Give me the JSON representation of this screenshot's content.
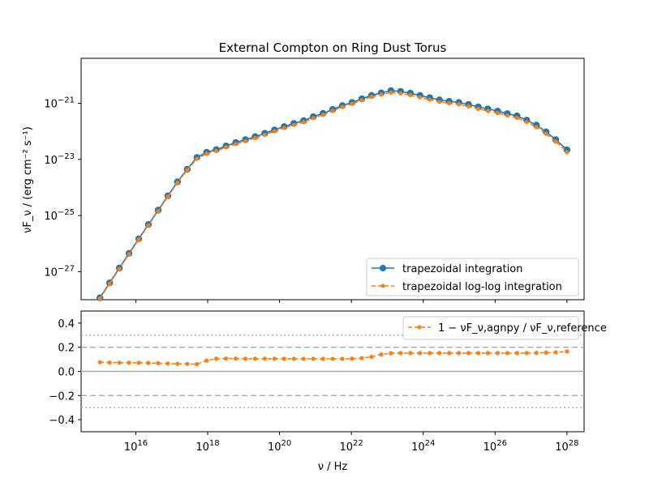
{
  "chart_data": [
    {
      "type": "line",
      "title": "External Compton on Ring Dust Torus",
      "xlabel": "",
      "ylabel": "νF_ν / (erg cm⁻² s⁻¹)",
      "x_scale": "log",
      "y_scale": "log",
      "xlim": [
        300000000000000.0,
        3e+28
      ],
      "ylim": [
        1e-28,
        4e-20
      ],
      "y_ticks": [
        {
          "mant": "10",
          "exp": "−21",
          "v": -21
        },
        {
          "mant": "10",
          "exp": "−23",
          "v": -23
        },
        {
          "mant": "10",
          "exp": "−25",
          "v": -25
        },
        {
          "mant": "10",
          "exp": "−27",
          "v": -27
        }
      ],
      "x_log10": [
        15.0,
        15.27,
        15.54,
        15.81,
        16.08,
        16.35,
        16.62,
        16.89,
        17.16,
        17.43,
        17.7,
        17.97,
        18.24,
        18.51,
        18.78,
        19.05,
        19.32,
        19.59,
        19.86,
        20.13,
        20.4,
        20.67,
        20.94,
        21.21,
        21.48,
        21.75,
        22.02,
        22.29,
        22.56,
        22.83,
        23.1,
        23.37,
        23.64,
        23.91,
        24.18,
        24.45,
        24.72,
        24.99,
        25.26,
        25.53,
        25.8,
        26.07,
        26.34,
        26.61,
        26.88,
        27.15,
        27.42,
        27.69,
        28.0
      ],
      "series": [
        {
          "name": "trapezoidal integration",
          "color": "#1f77b4",
          "marker": "circle",
          "line": "solid",
          "y_log10": [
            -27.93,
            -27.4,
            -26.87,
            -26.35,
            -25.83,
            -25.32,
            -24.81,
            -24.3,
            -23.8,
            -23.35,
            -22.93,
            -22.75,
            -22.65,
            -22.52,
            -22.4,
            -22.3,
            -22.19,
            -22.07,
            -21.95,
            -21.83,
            -21.72,
            -21.62,
            -21.48,
            -21.36,
            -21.22,
            -21.08,
            -20.97,
            -20.84,
            -20.72,
            -20.63,
            -20.55,
            -20.58,
            -20.64,
            -20.72,
            -20.8,
            -20.88,
            -20.93,
            -20.97,
            -21.04,
            -21.13,
            -21.2,
            -21.28,
            -21.37,
            -21.45,
            -21.6,
            -21.78,
            -22.02,
            -22.3,
            -22.66
          ]
        },
        {
          "name": "trapezoidal log-log integration",
          "color": "#ff7f0e",
          "marker": "dot",
          "line": "dashed",
          "y_log10": [
            -27.96,
            -27.43,
            -26.9,
            -26.38,
            -25.86,
            -25.35,
            -24.84,
            -24.33,
            -23.83,
            -23.38,
            -22.98,
            -22.8,
            -22.7,
            -22.57,
            -22.45,
            -22.35,
            -22.24,
            -22.12,
            -22.0,
            -21.88,
            -21.77,
            -21.67,
            -21.53,
            -21.41,
            -21.27,
            -21.13,
            -21.02,
            -20.89,
            -20.77,
            -20.69,
            -20.62,
            -20.65,
            -20.71,
            -20.79,
            -20.87,
            -20.95,
            -21.0,
            -21.04,
            -21.11,
            -21.2,
            -21.27,
            -21.35,
            -21.44,
            -21.52,
            -21.67,
            -21.85,
            -22.09,
            -22.37,
            -22.74
          ]
        }
      ]
    },
    {
      "type": "line",
      "xlabel": "ν / Hz",
      "ylabel": "",
      "x_scale": "log",
      "xlim": [
        300000000000000.0,
        3e+28
      ],
      "ylim": [
        -0.5,
        0.5
      ],
      "x_ticks": [
        {
          "mant": "10",
          "exp": "16",
          "v": 16
        },
        {
          "mant": "10",
          "exp": "18",
          "v": 18
        },
        {
          "mant": "10",
          "exp": "20",
          "v": 20
        },
        {
          "mant": "10",
          "exp": "22",
          "v": 22
        },
        {
          "mant": "10",
          "exp": "24",
          "v": 24
        },
        {
          "mant": "10",
          "exp": "26",
          "v": 26
        },
        {
          "mant": "10",
          "exp": "28",
          "v": 28
        }
      ],
      "y_ticks": [
        "0.4",
        "0.2",
        "0.0",
        "−0.2",
        "−0.4"
      ],
      "reference_lines": [
        {
          "y": 0.0,
          "style": "solid"
        },
        {
          "y": 0.2,
          "style": "dashed"
        },
        {
          "y": -0.2,
          "style": "dashed"
        },
        {
          "y": 0.3,
          "style": "dotted"
        },
        {
          "y": -0.3,
          "style": "dotted"
        }
      ],
      "series": [
        {
          "name": "1 − νF_ν,agnpy / νF_ν,reference",
          "color": "#ff7f0e",
          "marker": "dot",
          "line": "dashed",
          "x_log10": [
            15.0,
            15.27,
            15.54,
            15.81,
            16.08,
            16.35,
            16.62,
            16.89,
            17.16,
            17.43,
            17.7,
            17.97,
            18.24,
            18.51,
            18.78,
            19.05,
            19.32,
            19.59,
            19.86,
            20.13,
            20.4,
            20.67,
            20.94,
            21.21,
            21.48,
            21.75,
            22.02,
            22.29,
            22.56,
            22.83,
            23.1,
            23.37,
            23.64,
            23.91,
            24.18,
            24.45,
            24.72,
            24.99,
            25.26,
            25.53,
            25.8,
            26.07,
            26.34,
            26.61,
            26.88,
            27.15,
            27.42,
            27.69,
            28.0
          ],
          "y": [
            0.075,
            0.073,
            0.072,
            0.072,
            0.071,
            0.07,
            0.068,
            0.065,
            0.063,
            0.062,
            0.06,
            0.09,
            0.105,
            0.106,
            0.106,
            0.105,
            0.105,
            0.105,
            0.105,
            0.105,
            0.104,
            0.104,
            0.104,
            0.104,
            0.104,
            0.104,
            0.105,
            0.11,
            0.12,
            0.14,
            0.15,
            0.152,
            0.152,
            0.152,
            0.152,
            0.152,
            0.152,
            0.152,
            0.152,
            0.152,
            0.152,
            0.152,
            0.152,
            0.152,
            0.152,
            0.153,
            0.155,
            0.158,
            0.165
          ]
        }
      ]
    }
  ]
}
